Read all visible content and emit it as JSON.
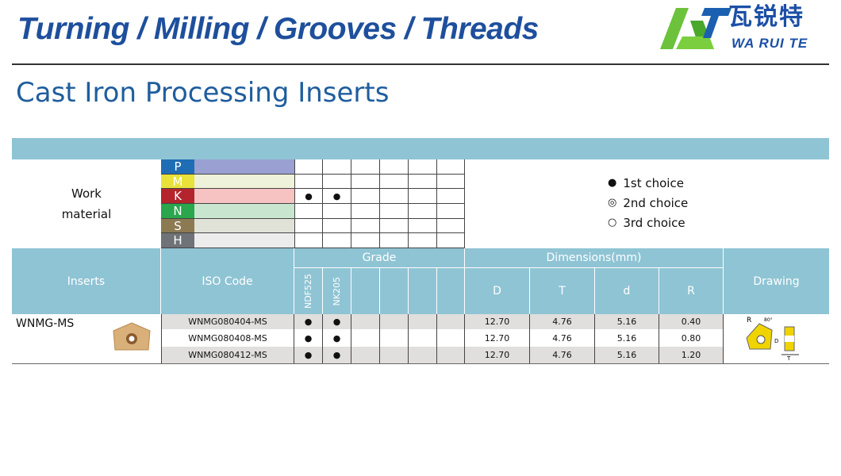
{
  "header": {
    "banner": "Turning / Milling / Grooves / Threads",
    "title": "Cast Iron Processing Inserts"
  },
  "logo": {
    "cn": "瓦锐特",
    "en": "WA RUI TE"
  },
  "work_material": {
    "label_line1": "Work",
    "label_line2": "material",
    "groups": [
      {
        "letter": "P",
        "color": "#1f6db5",
        "bar": "#9aa0d2",
        "marks": [
          "",
          "",
          "",
          "",
          "",
          ""
        ]
      },
      {
        "letter": "M",
        "color": "#e8e23a",
        "bar": "#eef2da",
        "marks": [
          "",
          "",
          "",
          "",
          "",
          ""
        ]
      },
      {
        "letter": "K",
        "color": "#b4242c",
        "bar": "#f6c2c2",
        "marks": [
          "●",
          "●",
          "",
          "",
          "",
          ""
        ]
      },
      {
        "letter": "N",
        "color": "#2aa64c",
        "bar": "#c8e6cf",
        "marks": [
          "",
          "",
          "",
          "",
          "",
          ""
        ]
      },
      {
        "letter": "S",
        "color": "#8c7a52",
        "bar": "#e0e2d8",
        "marks": [
          "",
          "",
          "",
          "",
          "",
          ""
        ]
      },
      {
        "letter": "H",
        "color": "#6f7276",
        "bar": "#ececec",
        "marks": [
          "",
          "",
          "",
          "",
          "",
          ""
        ]
      }
    ]
  },
  "legend": [
    {
      "symbol": "●",
      "label": "1st choice"
    },
    {
      "symbol": "◎",
      "label": "2nd choice"
    },
    {
      "symbol": "○",
      "label": "3rd choice"
    }
  ],
  "table_header": {
    "inserts": "Inserts",
    "iso": "ISO Code",
    "grade": "Grade",
    "grades": [
      "NDF525",
      "NK205",
      "",
      "",
      "",
      ""
    ],
    "dimensions": "Dimensions(mm)",
    "dims": [
      "D",
      "T",
      "d",
      "R"
    ],
    "drawing": "Drawing"
  },
  "insert_name": "WNMG-MS",
  "rows": [
    {
      "iso": "WNMG080404-MS",
      "grades": [
        "●",
        "●",
        "",
        "",
        "",
        ""
      ],
      "D": "12.70",
      "T": "4.76",
      "d": "5.16",
      "R": "0.40"
    },
    {
      "iso": "WNMG080408-MS",
      "grades": [
        "●",
        "●",
        "",
        "",
        "",
        ""
      ],
      "D": "12.70",
      "T": "4.76",
      "d": "5.16",
      "R": "0.80"
    },
    {
      "iso": "WNMG080412-MS",
      "grades": [
        "●",
        "●",
        "",
        "",
        "",
        ""
      ],
      "D": "12.70",
      "T": "4.76",
      "d": "5.16",
      "R": "1.20"
    }
  ],
  "drawing": {
    "r_label": "R",
    "angle": "80°",
    "d_label": "D",
    "t_label": "T"
  }
}
